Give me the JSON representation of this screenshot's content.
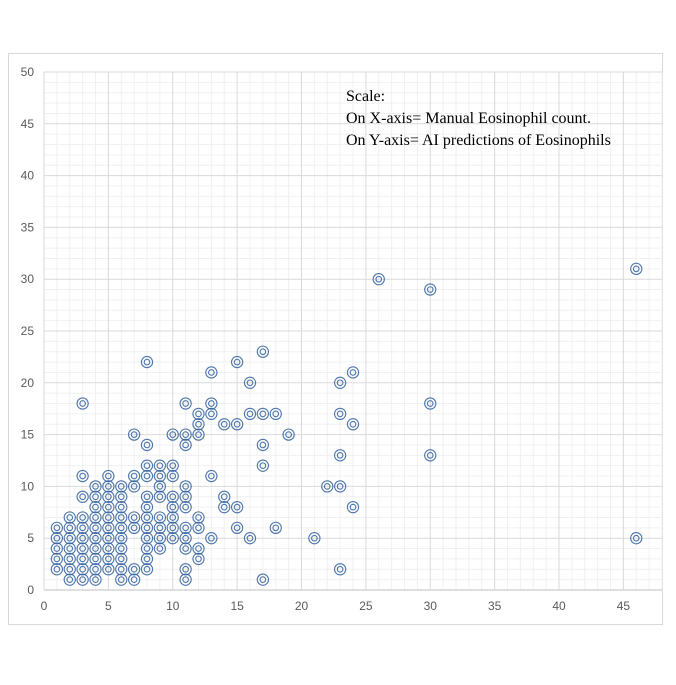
{
  "chart_data": {
    "type": "scatter",
    "title": "",
    "xlabel": "",
    "ylabel": "",
    "xlim": [
      0,
      48
    ],
    "ylim": [
      0,
      50
    ],
    "x_ticks": [
      0,
      5,
      10,
      15,
      20,
      25,
      30,
      35,
      40,
      45
    ],
    "y_ticks": [
      0,
      5,
      10,
      15,
      20,
      25,
      30,
      35,
      40,
      45,
      50
    ],
    "grid": true,
    "marker": "double-circle",
    "marker_color": "#2e5e9e",
    "annotation": [
      "Scale:",
      "On X-axis= Manual Eosinophil count.",
      "On Y-axis= AI predictions of Eosinophils"
    ],
    "series": [
      {
        "points": [
          [
            1,
            2
          ],
          [
            1,
            3
          ],
          [
            1,
            4
          ],
          [
            1,
            5
          ],
          [
            1,
            6
          ],
          [
            2,
            1
          ],
          [
            2,
            2
          ],
          [
            2,
            3
          ],
          [
            2,
            4
          ],
          [
            2,
            5
          ],
          [
            2,
            6
          ],
          [
            2,
            7
          ],
          [
            3,
            1
          ],
          [
            3,
            2
          ],
          [
            3,
            3
          ],
          [
            3,
            4
          ],
          [
            3,
            5
          ],
          [
            3,
            6
          ],
          [
            3,
            7
          ],
          [
            3,
            9
          ],
          [
            3,
            11
          ],
          [
            3,
            18
          ],
          [
            4,
            1
          ],
          [
            4,
            2
          ],
          [
            4,
            3
          ],
          [
            4,
            4
          ],
          [
            4,
            5
          ],
          [
            4,
            6
          ],
          [
            4,
            7
          ],
          [
            4,
            8
          ],
          [
            4,
            9
          ],
          [
            4,
            10
          ],
          [
            5,
            2
          ],
          [
            5,
            3
          ],
          [
            5,
            4
          ],
          [
            5,
            5
          ],
          [
            5,
            6
          ],
          [
            5,
            7
          ],
          [
            5,
            8
          ],
          [
            5,
            9
          ],
          [
            5,
            10
          ],
          [
            5,
            11
          ],
          [
            6,
            1
          ],
          [
            6,
            2
          ],
          [
            6,
            3
          ],
          [
            6,
            4
          ],
          [
            6,
            5
          ],
          [
            6,
            6
          ],
          [
            6,
            7
          ],
          [
            6,
            8
          ],
          [
            6,
            9
          ],
          [
            6,
            10
          ],
          [
            7,
            1
          ],
          [
            7,
            2
          ],
          [
            7,
            6
          ],
          [
            7,
            7
          ],
          [
            7,
            10
          ],
          [
            7,
            11
          ],
          [
            7,
            15
          ],
          [
            8,
            2
          ],
          [
            8,
            3
          ],
          [
            8,
            4
          ],
          [
            8,
            5
          ],
          [
            8,
            6
          ],
          [
            8,
            7
          ],
          [
            8,
            8
          ],
          [
            8,
            9
          ],
          [
            8,
            11
          ],
          [
            8,
            12
          ],
          [
            8,
            14
          ],
          [
            8,
            22
          ],
          [
            9,
            4
          ],
          [
            9,
            5
          ],
          [
            9,
            6
          ],
          [
            9,
            7
          ],
          [
            9,
            9
          ],
          [
            9,
            10
          ],
          [
            9,
            11
          ],
          [
            9,
            12
          ],
          [
            10,
            5
          ],
          [
            10,
            6
          ],
          [
            10,
            7
          ],
          [
            10,
            8
          ],
          [
            10,
            9
          ],
          [
            10,
            11
          ],
          [
            10,
            12
          ],
          [
            10,
            15
          ],
          [
            11,
            1
          ],
          [
            11,
            2
          ],
          [
            11,
            4
          ],
          [
            11,
            5
          ],
          [
            11,
            6
          ],
          [
            11,
            8
          ],
          [
            11,
            9
          ],
          [
            11,
            10
          ],
          [
            11,
            14
          ],
          [
            11,
            15
          ],
          [
            11,
            18
          ],
          [
            12,
            3
          ],
          [
            12,
            4
          ],
          [
            12,
            6
          ],
          [
            12,
            7
          ],
          [
            12,
            15
          ],
          [
            12,
            16
          ],
          [
            12,
            17
          ],
          [
            13,
            5
          ],
          [
            13,
            11
          ],
          [
            13,
            17
          ],
          [
            13,
            18
          ],
          [
            13,
            21
          ],
          [
            14,
            8
          ],
          [
            14,
            9
          ],
          [
            14,
            16
          ],
          [
            15,
            6
          ],
          [
            15,
            8
          ],
          [
            15,
            16
          ],
          [
            15,
            22
          ],
          [
            16,
            5
          ],
          [
            16,
            17
          ],
          [
            16,
            20
          ],
          [
            17,
            1
          ],
          [
            17,
            12
          ],
          [
            17,
            14
          ],
          [
            17,
            17
          ],
          [
            17,
            23
          ],
          [
            18,
            6
          ],
          [
            18,
            17
          ],
          [
            19,
            15
          ],
          [
            21,
            5
          ],
          [
            22,
            10
          ],
          [
            23,
            2
          ],
          [
            23,
            10
          ],
          [
            23,
            13
          ],
          [
            23,
            17
          ],
          [
            23,
            20
          ],
          [
            24,
            8
          ],
          [
            24,
            16
          ],
          [
            24,
            21
          ],
          [
            26,
            30
          ],
          [
            30,
            13
          ],
          [
            30,
            18
          ],
          [
            30,
            29
          ],
          [
            46,
            5
          ],
          [
            46,
            31
          ]
        ]
      }
    ]
  }
}
